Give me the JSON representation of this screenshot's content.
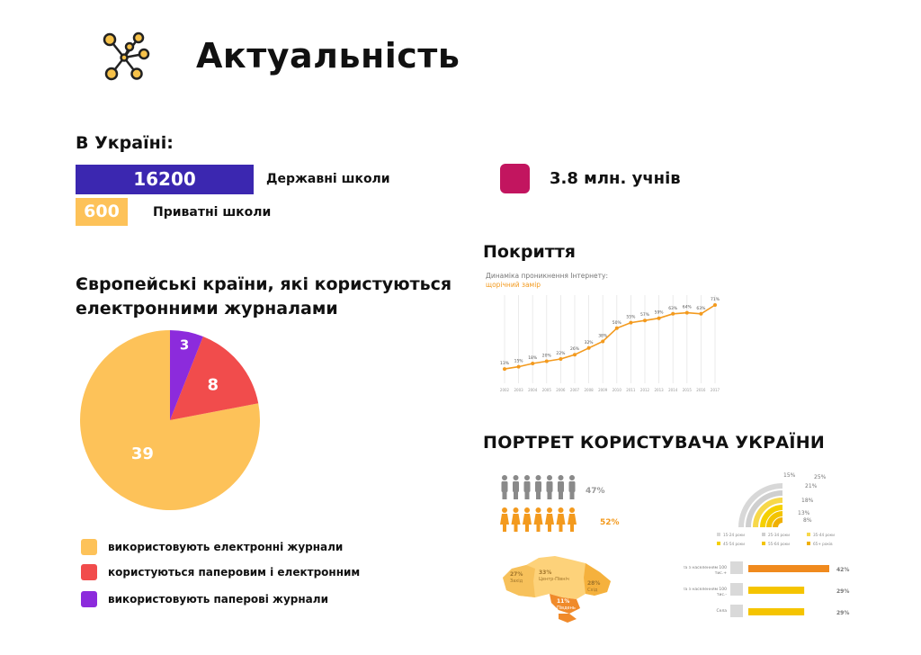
{
  "title": "Актуальність",
  "ukraine": {
    "heading": "В Україні:",
    "state_schools": {
      "value": "16200",
      "label": "Державні школи"
    },
    "private_schools": {
      "value": "600",
      "label": "Приватні школи"
    },
    "pupils": "3.8 млн. учнів"
  },
  "europe": {
    "heading": "Європейські країни, які користуються електронними журналами",
    "legend": [
      {
        "label": "використовують електронні журнали",
        "color": "#fdc259"
      },
      {
        "label": "користуються паперовим і електронним",
        "color": "#f14c4c"
      },
      {
        "label": "використовують паперові журнали",
        "color": "#8c2bdc"
      }
    ]
  },
  "coverage": {
    "heading": "Покриття",
    "chart_caption": "Динаміка проникнення Інтернету:",
    "chart_subcaption": "щорічний замір"
  },
  "portrait": {
    "heading": "ПОРТРЕТ КОРИСТУВАЧА УКРАЇНИ",
    "men_percent": "47%",
    "women_percent": "52%",
    "age_percents": [
      "15%",
      "25%",
      "21%",
      "18%",
      "13%",
      "8%"
    ],
    "age_legend": [
      "15-24 роки",
      "25-34 роки",
      "35-44 роки",
      "45-54 роки",
      "55-64 роки",
      "65+ років"
    ],
    "regions": [
      {
        "name": "Захід",
        "percent": "27%"
      },
      {
        "name": "Центр-Північ",
        "percent": "33%"
      },
      {
        "name": "Схід",
        "percent": "28%"
      },
      {
        "name": "Південь",
        "percent": "11%"
      }
    ],
    "settlements": [
      {
        "label": "Міста з населенням 100 тис.+",
        "percent": "42%",
        "value": 42
      },
      {
        "label": "Міста з населенням 100 тис.-",
        "percent": "29%",
        "value": 29
      },
      {
        "label": "Села",
        "percent": "29%",
        "value": 29
      }
    ]
  },
  "chart_data": [
    {
      "type": "pie",
      "title": "Європейські країни, які користуються електронними журналами",
      "labels": [
        "використовують електронні журнали",
        "користуються паперовим і електронним",
        "використовують паперові журнали"
      ],
      "values": [
        39,
        8,
        3
      ],
      "colors": [
        "#fdc259",
        "#f14c4c",
        "#8c2bdc"
      ]
    },
    {
      "type": "line",
      "title": "Динаміка проникнення Інтернету:",
      "subtitle": "щорічний замір",
      "x": [
        "2002",
        "2003",
        "2004",
        "2005",
        "2006",
        "2007",
        "2008",
        "2009",
        "2010",
        "2011",
        "2012",
        "2013",
        "2014",
        "2015",
        "2016",
        "2017"
      ],
      "series": [
        {
          "values": [
            13,
            15,
            18,
            20,
            22,
            26,
            32,
            38,
            50,
            55,
            57,
            59,
            63,
            64,
            63,
            71
          ],
          "color": "#f39a1e"
        }
      ],
      "ylim": [
        0,
        80
      ],
      "grid": true
    }
  ]
}
